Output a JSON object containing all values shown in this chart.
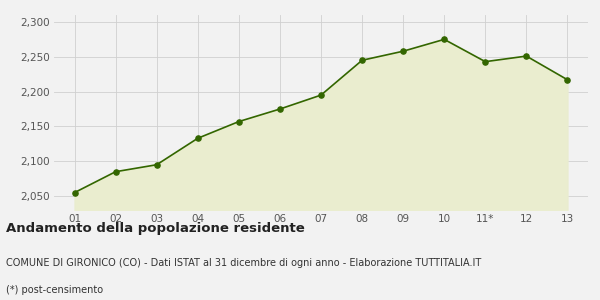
{
  "x_labels": [
    "01",
    "02",
    "03",
    "04",
    "05",
    "06",
    "07",
    "08",
    "09",
    "10",
    "11*",
    "12",
    "13"
  ],
  "x_values": [
    1,
    2,
    3,
    4,
    5,
    6,
    7,
    8,
    9,
    10,
    11,
    12,
    13
  ],
  "y_values": [
    2055,
    2085,
    2095,
    2133,
    2157,
    2175,
    2195,
    2245,
    2258,
    2275,
    2243,
    2251,
    2217
  ],
  "ylim": [
    2030,
    2310
  ],
  "yticks": [
    2050,
    2100,
    2150,
    2200,
    2250,
    2300
  ],
  "line_color": "#336600",
  "fill_color": "#eaedcf",
  "marker_color": "#336600",
  "bg_color": "#f2f2f2",
  "grid_color": "#d0d0d0",
  "title": "Andamento della popolazione residente",
  "subtitle": "COMUNE DI GIRONICO (CO) - Dati ISTAT al 31 dicembre di ogni anno - Elaborazione TUTTITALIA.IT",
  "footnote": "(*) post-censimento",
  "title_fontsize": 9.5,
  "subtitle_fontsize": 7,
  "footnote_fontsize": 7
}
